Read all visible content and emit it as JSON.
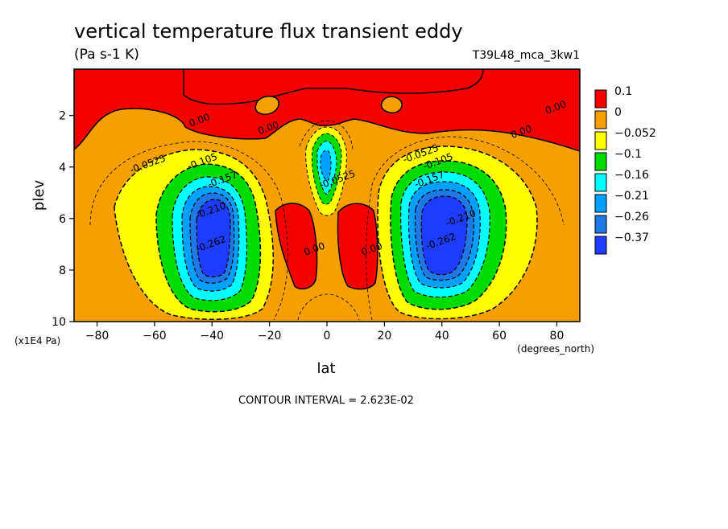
{
  "chart_data": {
    "type": "contour",
    "title": "vertical temperature flux transient eddy",
    "subtitle": "(Pa s-1 K)",
    "run_label": "T39L48_mca_3kw1",
    "xlabel": "lat",
    "ylabel": "plev",
    "x_unit_label": "(degrees_north)",
    "y_unit_label": "(x1E4 Pa)",
    "xlim": [
      -88,
      88
    ],
    "ylim": [
      10,
      0.2
    ],
    "y_inverted": true,
    "x_ticks": [
      -80,
      -60,
      -40,
      -20,
      0,
      20,
      40,
      60,
      80
    ],
    "y_ticks": [
      2,
      4,
      6,
      8,
      10
    ],
    "footer": "CONTOUR INTERVAL = 2.623E-02",
    "colorbar": {
      "placement": "right",
      "levels": [
        {
          "label": "0.1",
          "color": "#f40000"
        },
        {
          "label": "0",
          "color": "#f5a000"
        },
        {
          "label": "−0.052",
          "color": "#ffff00"
        },
        {
          "label": "−0.1",
          "color": "#00dc00"
        },
        {
          "label": "−0.16",
          "color": "#00ffff"
        },
        {
          "label": "−0.21",
          "color": "#00a0ff"
        },
        {
          "label": "−0.26",
          "color": "#1e78e6"
        },
        {
          "label": "−0.37",
          "color": "#1e3cff"
        }
      ]
    },
    "contour_labels": [
      {
        "text": "0.00",
        "x": -44,
        "y": 2.3
      },
      {
        "text": "0.00",
        "x": -20,
        "y": 2.6
      },
      {
        "text": "0.00",
        "x": 80,
        "y": 1.8
      },
      {
        "text": "0.00",
        "x": 68,
        "y": 2.75
      },
      {
        "text": "-0.0525",
        "x": -62,
        "y": 4.0
      },
      {
        "text": "-0.105",
        "x": -43,
        "y": 3.9
      },
      {
        "text": "-0.157",
        "x": -36,
        "y": 4.6
      },
      {
        "text": "-0.210",
        "x": -40,
        "y": 5.8
      },
      {
        "text": "-0.262",
        "x": -40,
        "y": 7.1
      },
      {
        "text": "-0.0525",
        "x": 33,
        "y": 3.6
      },
      {
        "text": "-0.105",
        "x": 39,
        "y": 3.9
      },
      {
        "text": "-0.157",
        "x": 36,
        "y": 4.6
      },
      {
        "text": "-0.210",
        "x": 47,
        "y": 6.1
      },
      {
        "text": "-0.262",
        "x": 40,
        "y": 7.0
      },
      {
        "text": "-0.0525",
        "x": 4,
        "y": 4.6
      },
      {
        "text": "0.00",
        "x": -4,
        "y": 7.3
      },
      {
        "text": "0.00",
        "x": 16,
        "y": 7.3
      }
    ]
  }
}
